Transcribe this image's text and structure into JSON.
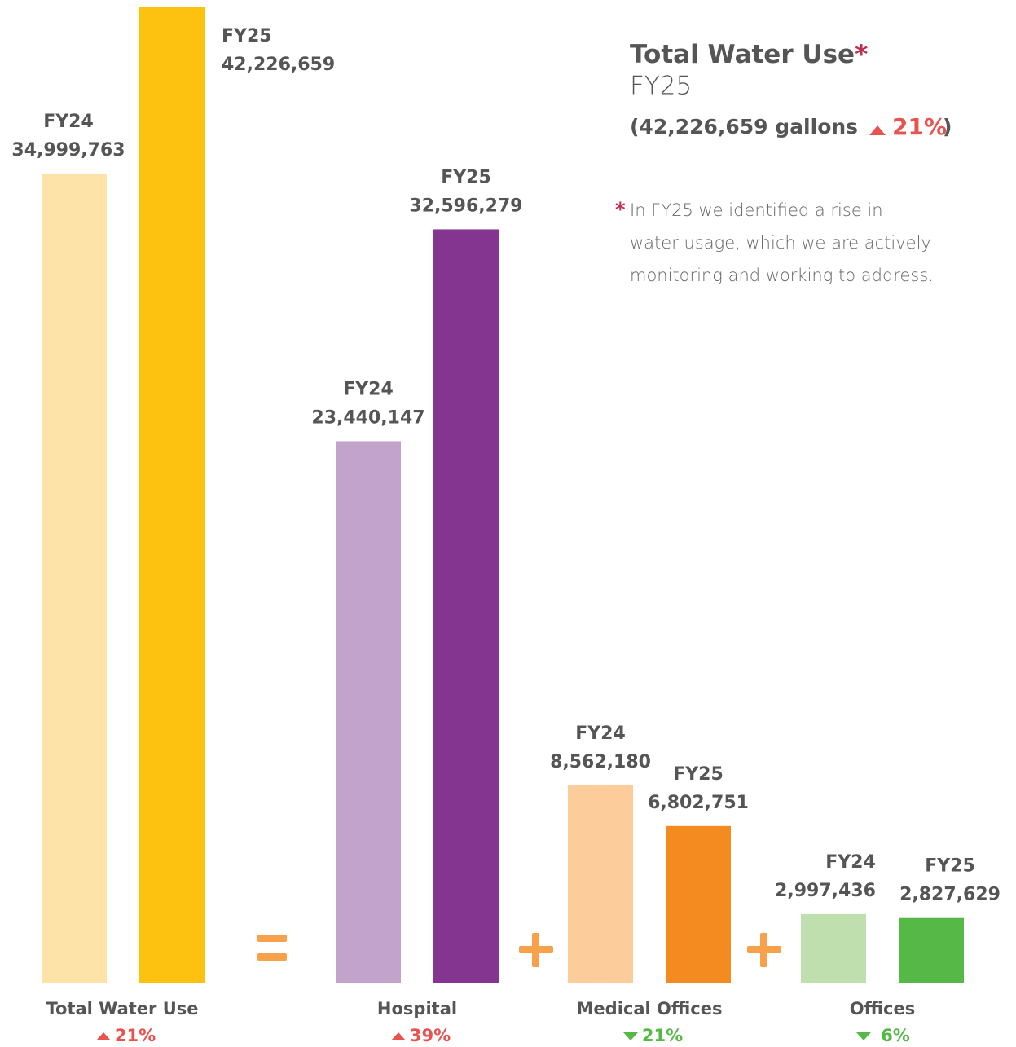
{
  "chart_data": {
    "type": "bar",
    "categories": [
      "Total Water Use",
      "Hospital",
      "Medical Offices",
      "Offices"
    ],
    "series": [
      {
        "name": "FY24",
        "values": [
          34999763,
          23440147,
          8562180,
          2997436
        ],
        "value_labels": [
          "34,999,763",
          "23,440,147",
          "8,562,180",
          "2,997,436"
        ],
        "colors": [
          "#fde3a7",
          "#c1a3cc",
          "#fccd9a",
          "#bfe0ae"
        ]
      },
      {
        "name": "FY25",
        "values": [
          42226659,
          32596279,
          6802751,
          2827629
        ],
        "value_labels": [
          "42,226,659",
          "32,596,279",
          "6,802,751",
          "2,827,629"
        ],
        "colors": [
          "#fdc20f",
          "#83358f",
          "#f38b20",
          "#55b847"
        ]
      }
    ],
    "changes": [
      21,
      39,
      21,
      6
    ],
    "change_labels": [
      "21%",
      "39%",
      "21%",
      "6%"
    ],
    "change_directions": [
      "up",
      "up",
      "down",
      "down"
    ],
    "direction_colors": {
      "up": "#e8524f",
      "down": "#55b847"
    },
    "headline": {
      "title": "Total Water Use",
      "asterisk": "*",
      "subtitle": "FY25",
      "summary": "(42,226,659 gallons",
      "summary_change": "21%",
      "summary_close": ")",
      "note_lines": [
        "In FY25 we identified a rise in",
        "water usage, which we are actively",
        "monitoring and working to address."
      ]
    }
  }
}
